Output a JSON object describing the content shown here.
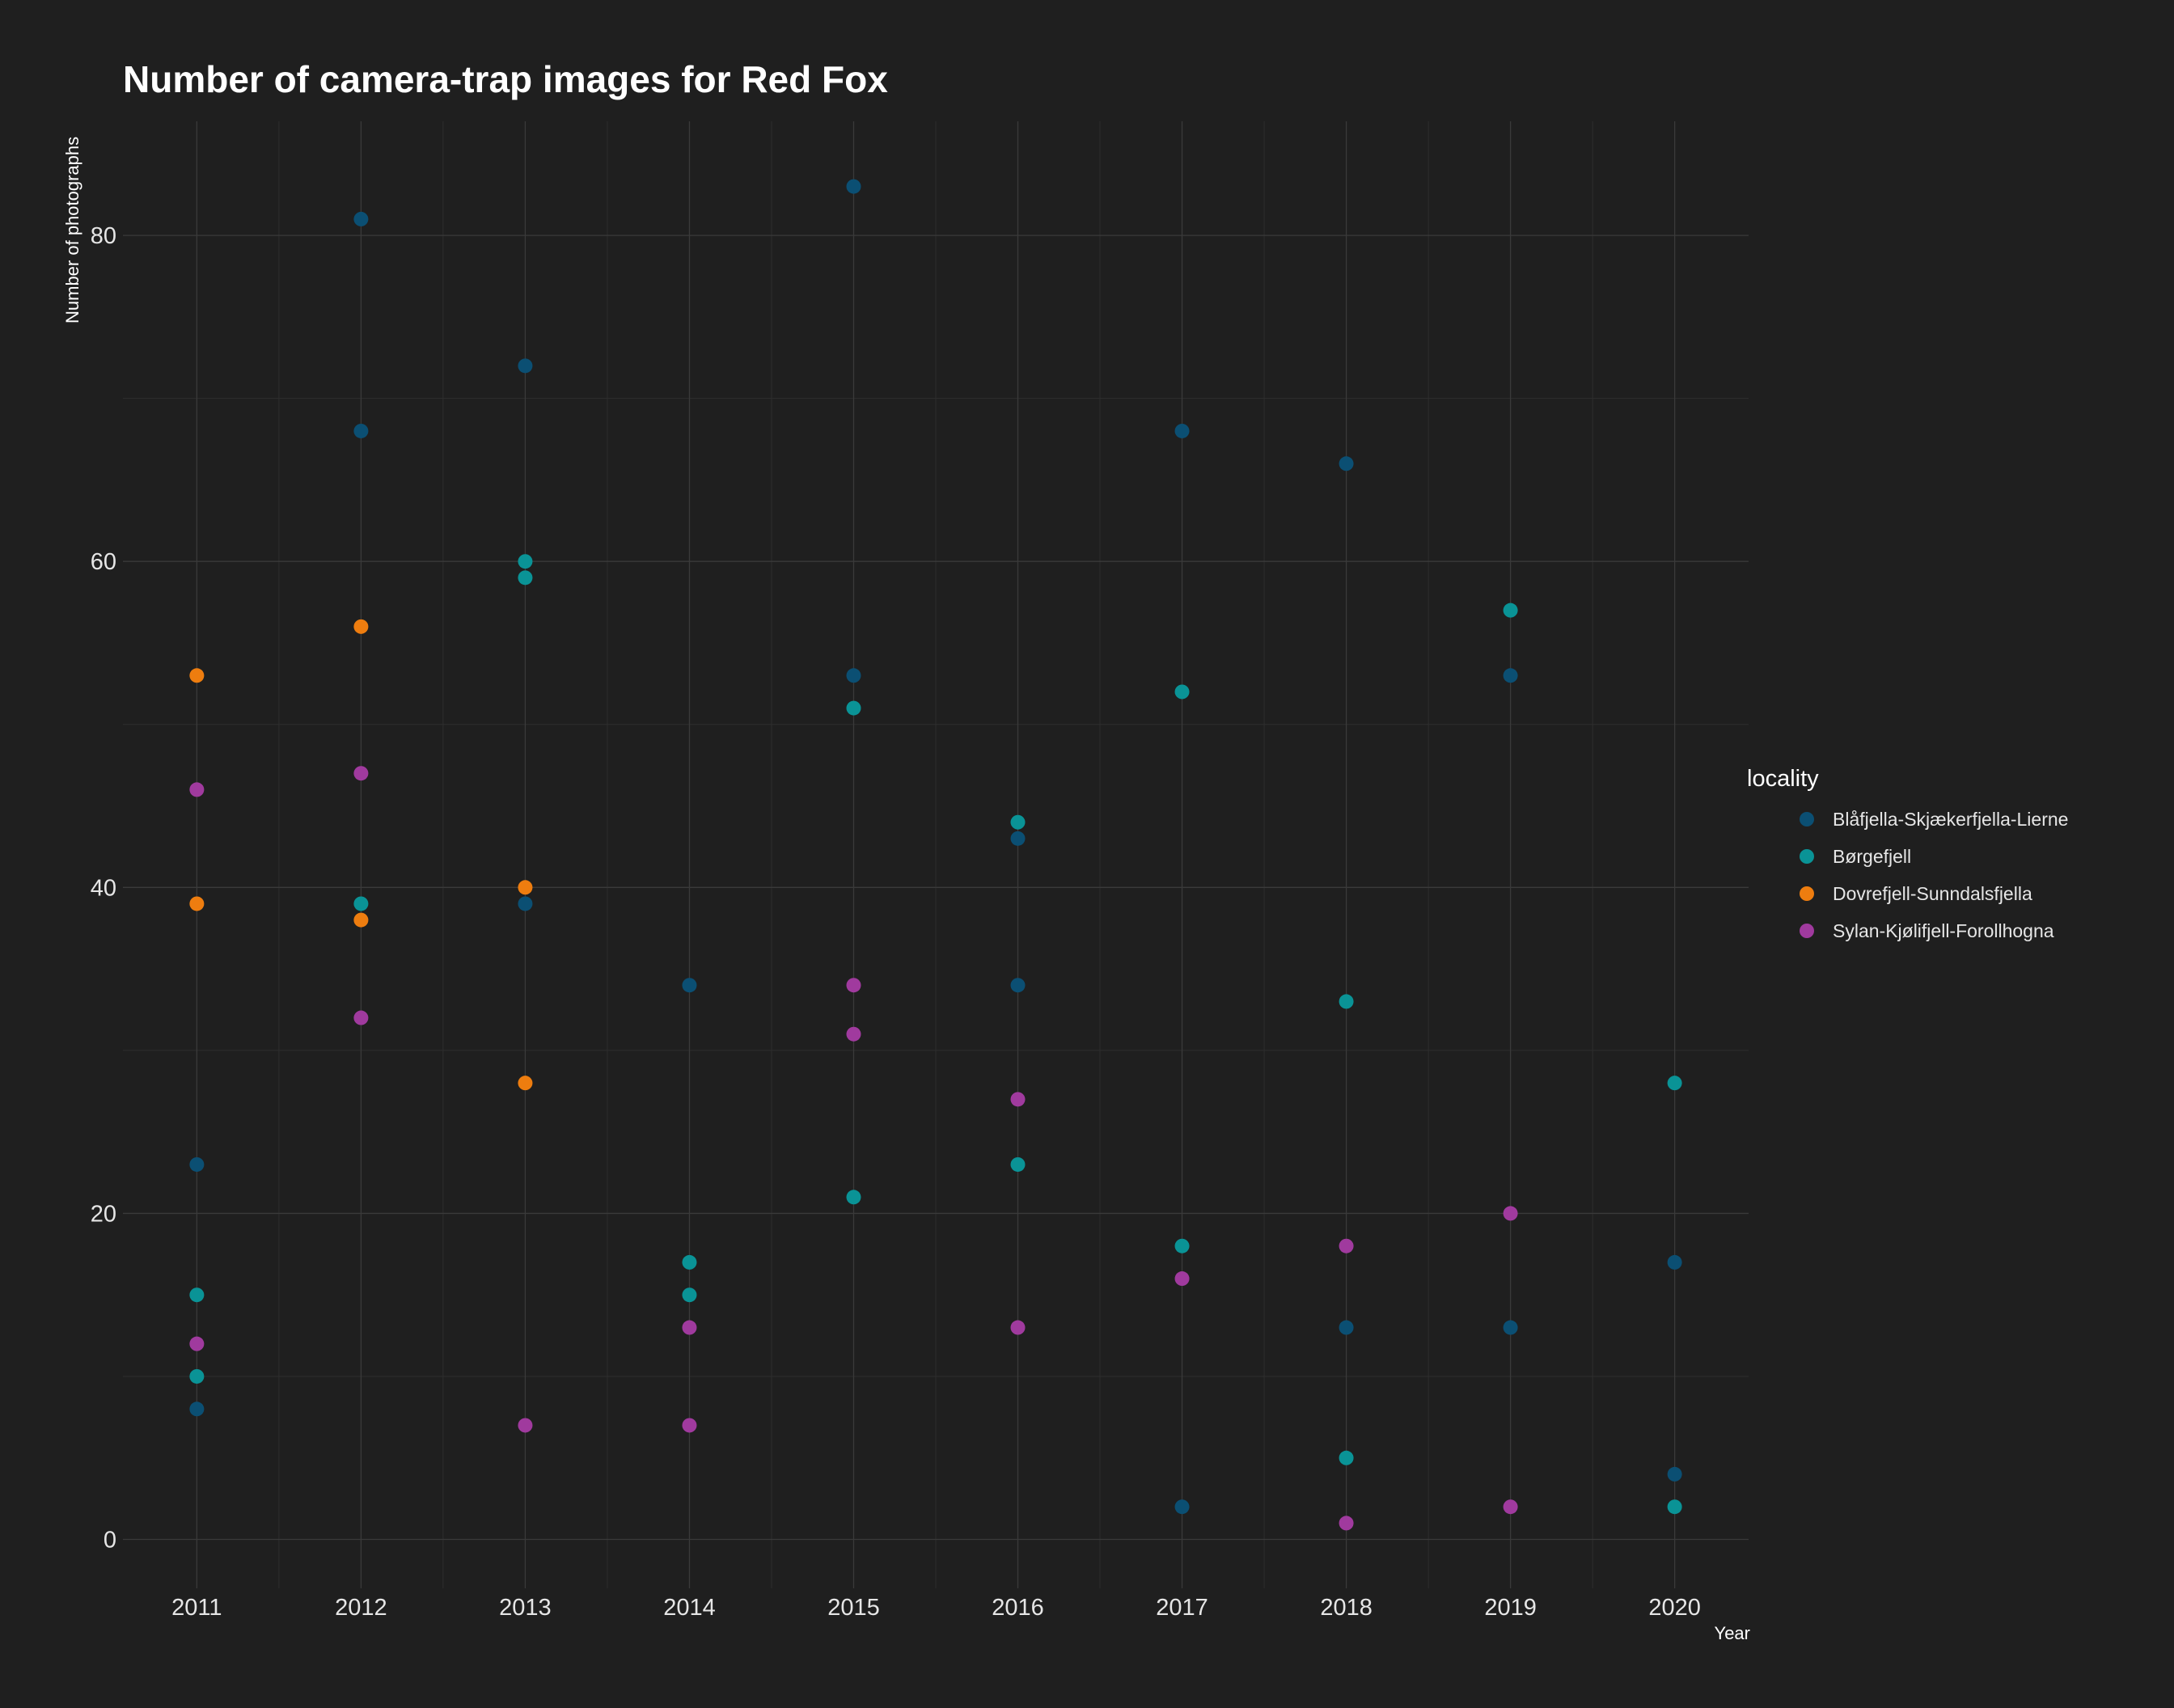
{
  "chart_data": {
    "type": "scatter",
    "title": "Number of camera-trap images for Red Fox",
    "xlabel": "Year",
    "ylabel": "Number of photographs",
    "x_ticks": [
      "2011",
      "2012",
      "2013",
      "2014",
      "2015",
      "2016",
      "2017",
      "2018",
      "2019",
      "2020"
    ],
    "y_ticks": [
      "0",
      "20",
      "40",
      "60",
      "80"
    ],
    "xlim": [
      2010.55,
      2020.45
    ],
    "ylim": [
      -3,
      87
    ],
    "grid": true,
    "legend": {
      "title": "locality",
      "position": "right"
    },
    "series": [
      {
        "name": "Blåfjella-Skjækerfjella-Lierne",
        "color": "#0b4f73",
        "points": [
          [
            2011,
            23
          ],
          [
            2011,
            8
          ],
          [
            2012,
            81
          ],
          [
            2012,
            68
          ],
          [
            2013,
            72
          ],
          [
            2013,
            39
          ],
          [
            2014,
            34
          ],
          [
            2015,
            83
          ],
          [
            2015,
            53
          ],
          [
            2016,
            43
          ],
          [
            2016,
            34
          ],
          [
            2017,
            68
          ],
          [
            2017,
            2
          ],
          [
            2018,
            66
          ],
          [
            2018,
            13
          ],
          [
            2019,
            53
          ],
          [
            2019,
            13
          ],
          [
            2020,
            17
          ],
          [
            2020,
            4
          ]
        ]
      },
      {
        "name": "Børgefjell",
        "color": "#0a9396",
        "points": [
          [
            2011,
            15
          ],
          [
            2011,
            10
          ],
          [
            2012,
            39
          ],
          [
            2013,
            60
          ],
          [
            2013,
            59
          ],
          [
            2014,
            17
          ],
          [
            2014,
            15
          ],
          [
            2015,
            51
          ],
          [
            2015,
            21
          ],
          [
            2016,
            44
          ],
          [
            2016,
            23
          ],
          [
            2017,
            52
          ],
          [
            2017,
            18
          ],
          [
            2018,
            33
          ],
          [
            2018,
            5
          ],
          [
            2019,
            57
          ],
          [
            2020,
            28
          ],
          [
            2020,
            2
          ]
        ]
      },
      {
        "name": "Dovrefjell-Sunndalsfjella",
        "color": "#ee7d0f",
        "points": [
          [
            2011,
            53
          ],
          [
            2011,
            39
          ],
          [
            2012,
            56
          ],
          [
            2012,
            38
          ],
          [
            2013,
            40
          ],
          [
            2013,
            28
          ]
        ]
      },
      {
        "name": "Sylan-Kjølifjell-Forollhogna",
        "color": "#a03a9e",
        "points": [
          [
            2011,
            46
          ],
          [
            2011,
            12
          ],
          [
            2012,
            47
          ],
          [
            2012,
            32
          ],
          [
            2013,
            7
          ],
          [
            2014,
            13
          ],
          [
            2014,
            7
          ],
          [
            2015,
            34
          ],
          [
            2015,
            31
          ],
          [
            2016,
            27
          ],
          [
            2016,
            13
          ],
          [
            2017,
            16
          ],
          [
            2018,
            18
          ],
          [
            2018,
            1
          ],
          [
            2019,
            20
          ],
          [
            2019,
            2
          ]
        ]
      }
    ]
  }
}
